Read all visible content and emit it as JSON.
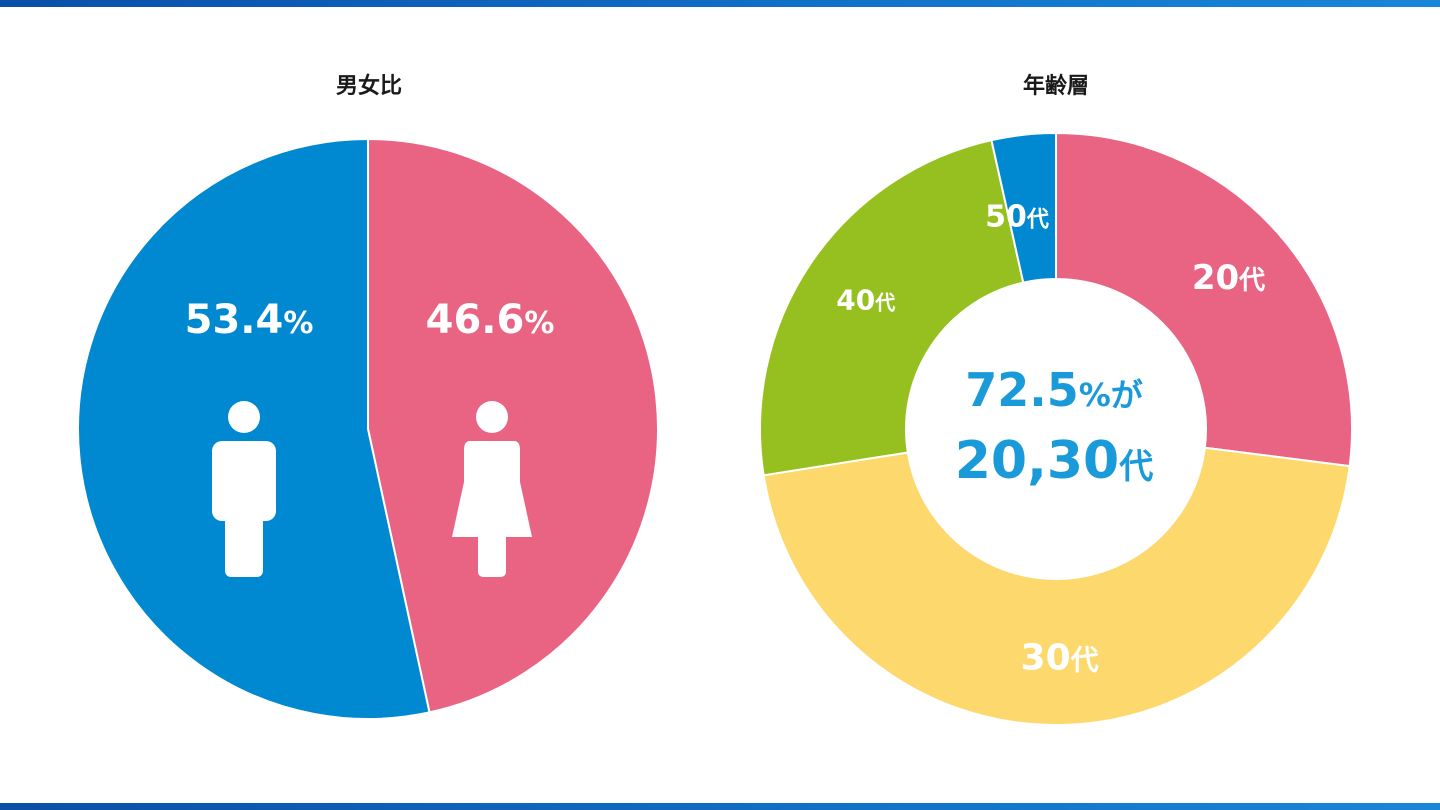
{
  "colors": {
    "male": "#0088d0",
    "female": "#e96483",
    "age20": "#e96483",
    "age30": "#fcd86d",
    "age40": "#96c020",
    "age50": "#0088d0",
    "accent_text": "#1a9ad9"
  },
  "chart_data": [
    {
      "type": "pie",
      "title": "男女比",
      "slices": [
        {
          "label": "53.4",
          "unit": "%",
          "value": 53.4,
          "color": "#0088d0",
          "icon": "male-person-icon"
        },
        {
          "label": "46.6",
          "unit": "%",
          "value": 46.6,
          "color": "#e96483",
          "icon": "female-person-icon"
        }
      ]
    },
    {
      "type": "pie",
      "title": "年齢層",
      "slices": [
        {
          "label": "20",
          "unit": "代",
          "value": 27,
          "color": "#e96483"
        },
        {
          "label": "30",
          "unit": "代",
          "value": 45.5,
          "color": "#fcd86d"
        },
        {
          "label": "40",
          "unit": "代",
          "value": 24,
          "color": "#96c020"
        },
        {
          "label": "50",
          "unit": "代",
          "value": 3.5,
          "color": "#0088d0"
        }
      ],
      "center_text": {
        "line1_num": "72.5",
        "line1_pct": "%",
        "line1_suffix": "が",
        "line2_num": "20,30",
        "line2_suffix": "代"
      }
    }
  ]
}
